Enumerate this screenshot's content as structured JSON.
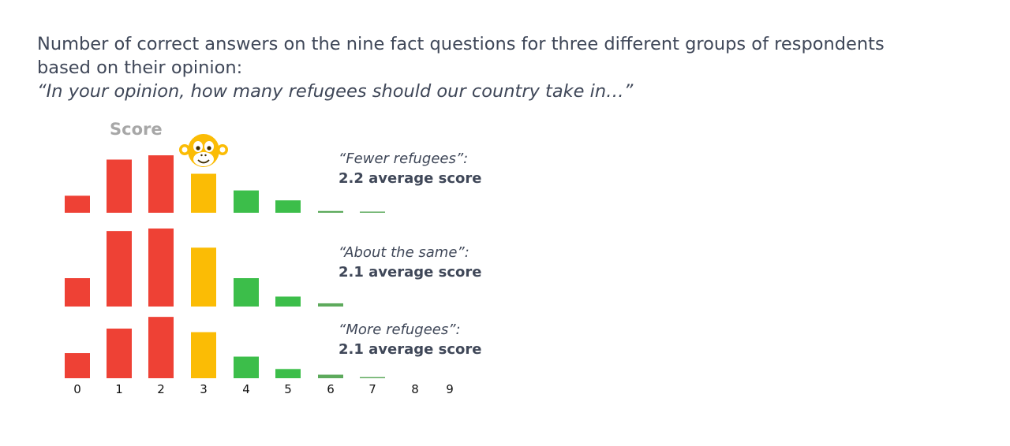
{
  "title": {
    "line1": "Number of correct answers on the nine fact questions for three different groups of respondents",
    "line2": "based on their opinion:",
    "quote": "“In your opinion, how many refugees should our country take in…”"
  },
  "chart_data": {
    "type": "bar",
    "axis_label": "Score",
    "categories": [
      "0",
      "1",
      "2",
      "3",
      "4",
      "5",
      "6",
      "7",
      "8",
      "9"
    ],
    "colors": {
      "low": "#ee4135",
      "mid": "#fbbc05",
      "high": "#3cbe4a",
      "minor": "#5daa5c"
    },
    "icon": "monkey-face-icon",
    "series": [
      {
        "name": "“Fewer refugees”:",
        "summary": "2.2 average score",
        "values": [
          4.8,
          15.0,
          16.2,
          11.0,
          6.3,
          3.5,
          0.5,
          0.2,
          0,
          0
        ]
      },
      {
        "name": "“About the same”:",
        "summary": "2.1 average score",
        "values": [
          8.0,
          21.3,
          22.0,
          16.6,
          8.0,
          2.8,
          0.9,
          0,
          0,
          0
        ]
      },
      {
        "name": "“More refugees”:",
        "summary": "2.1 average score",
        "values": [
          7.1,
          14.0,
          17.3,
          13.0,
          6.1,
          2.6,
          1.0,
          0.3,
          0,
          0
        ]
      }
    ]
  }
}
